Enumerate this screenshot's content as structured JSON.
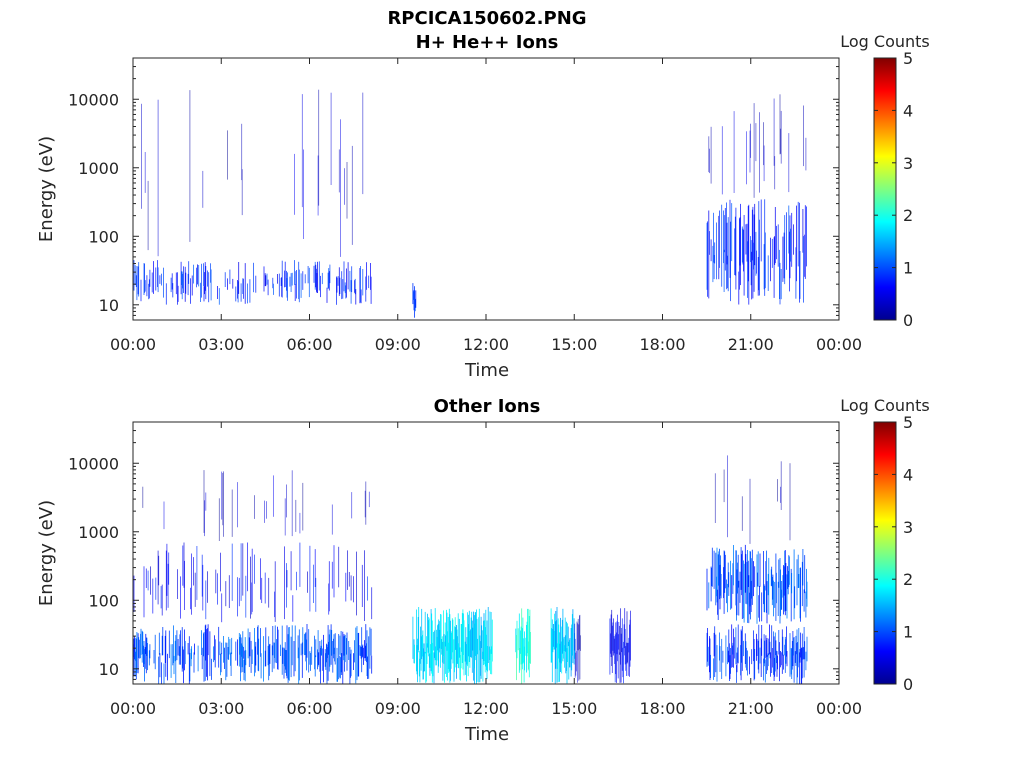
{
  "figure": {
    "title_line1": "RPCICA150602.PNG",
    "title_line2": "H+ He++ Ions"
  },
  "chart_data": [
    {
      "type": "heatmap",
      "title": "H+ He++ Ions",
      "xlabel": "Time",
      "ylabel": "Energy (eV)",
      "x_ticks": [
        "00:00",
        "03:00",
        "06:00",
        "09:00",
        "12:00",
        "15:00",
        "18:00",
        "21:00",
        "00:00"
      ],
      "xlim_hours": [
        0,
        24
      ],
      "y_ticks": [
        "10",
        "100",
        "1000",
        "10000"
      ],
      "y_scale": "log",
      "ylim": [
        6,
        40000
      ],
      "colorbar_label": "Log Counts",
      "colorbar_ticks": [
        "0",
        "1",
        "2",
        "3",
        "4",
        "5"
      ],
      "clim": [
        0,
        5
      ],
      "colormap": "jet",
      "regions": [
        {
          "t_start": 0.0,
          "t_end": 8.1,
          "e_min": 10,
          "e_max": 45,
          "level": 0.8,
          "density": 0.35
        },
        {
          "t_start": 0.0,
          "t_end": 8.1,
          "e_min": 45,
          "e_max": 15000,
          "level": 0.3,
          "density": 0.04
        },
        {
          "t_start": 9.5,
          "t_end": 9.6,
          "e_min": 6,
          "e_max": 25,
          "level": 1.0,
          "density": 1.0
        },
        {
          "t_start": 19.5,
          "t_end": 22.9,
          "e_min": 10,
          "e_max": 350,
          "level": 0.8,
          "density": 0.5
        },
        {
          "t_start": 19.5,
          "t_end": 22.9,
          "e_min": 350,
          "e_max": 12000,
          "level": 0.3,
          "density": 0.12
        }
      ]
    },
    {
      "type": "heatmap",
      "title": "Other Ions",
      "xlabel": "Time",
      "ylabel": "Energy (eV)",
      "x_ticks": [
        "00:00",
        "03:00",
        "06:00",
        "09:00",
        "12:00",
        "15:00",
        "18:00",
        "21:00",
        "00:00"
      ],
      "xlim_hours": [
        0,
        24
      ],
      "y_ticks": [
        "10",
        "100",
        "1000",
        "10000"
      ],
      "y_scale": "log",
      "ylim": [
        6,
        40000
      ],
      "colorbar_label": "Log Counts",
      "colorbar_ticks": [
        "0",
        "1",
        "2",
        "3",
        "4",
        "5"
      ],
      "clim": [
        0,
        5
      ],
      "colormap": "jet",
      "regions": [
        {
          "t_start": 0.0,
          "t_end": 8.1,
          "e_min": 6,
          "e_max": 45,
          "level": 1.0,
          "density": 0.6
        },
        {
          "t_start": 0.0,
          "t_end": 8.1,
          "e_min": 45,
          "e_max": 700,
          "level": 0.6,
          "density": 0.2
        },
        {
          "t_start": 0.0,
          "t_end": 8.1,
          "e_min": 700,
          "e_max": 8000,
          "level": 0.3,
          "density": 0.05
        },
        {
          "t_start": 9.5,
          "t_end": 12.2,
          "e_min": 6,
          "e_max": 80,
          "level": 1.7,
          "density": 0.95
        },
        {
          "t_start": 13.0,
          "t_end": 13.5,
          "e_min": 6,
          "e_max": 80,
          "level": 2.0,
          "density": 0.95
        },
        {
          "t_start": 14.2,
          "t_end": 15.0,
          "e_min": 6,
          "e_max": 80,
          "level": 1.6,
          "density": 0.95
        },
        {
          "t_start": 15.0,
          "t_end": 15.2,
          "e_min": 6,
          "e_max": 80,
          "level": 0.3,
          "density": 1.0
        },
        {
          "t_start": 16.2,
          "t_end": 16.9,
          "e_min": 6,
          "e_max": 80,
          "level": 0.6,
          "density": 1.0
        },
        {
          "t_start": 19.5,
          "t_end": 22.9,
          "e_min": 6,
          "e_max": 45,
          "level": 0.9,
          "density": 0.6
        },
        {
          "t_start": 19.5,
          "t_end": 22.9,
          "e_min": 45,
          "e_max": 650,
          "level": 1.0,
          "density": 0.7
        },
        {
          "t_start": 19.5,
          "t_end": 22.9,
          "e_min": 650,
          "e_max": 15000,
          "level": 0.3,
          "density": 0.08
        }
      ]
    }
  ]
}
